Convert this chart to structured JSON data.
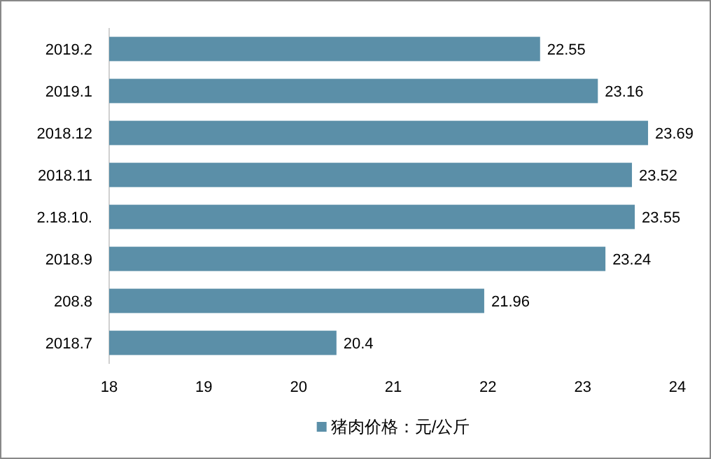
{
  "chart_data": {
    "type": "bar",
    "orientation": "horizontal",
    "categories": [
      "2019.2",
      "2019.1",
      "2018.12",
      "2018.11",
      "2.18.10.",
      "2018.9",
      "208.8",
      "2018.7"
    ],
    "series": [
      {
        "name": "猪肉价格：元/公斤",
        "color": "#5b8fa8",
        "values": [
          22.55,
          23.16,
          23.69,
          23.52,
          23.55,
          23.24,
          21.96,
          20.4
        ]
      }
    ],
    "xlim": [
      18,
      24
    ],
    "xticks": [
      18,
      19,
      20,
      21,
      22,
      23,
      24
    ],
    "data_labels": true,
    "legend": "bottom",
    "grid": false
  }
}
